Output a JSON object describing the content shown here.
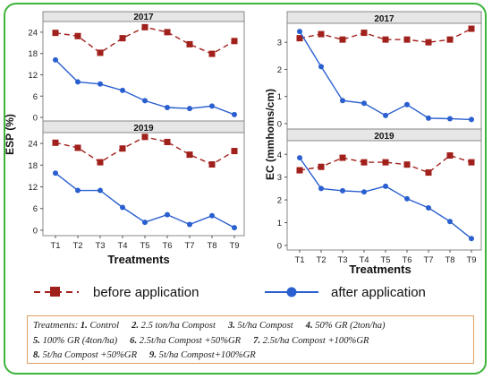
{
  "panel_titles": [
    "2017",
    "2019",
    "2017",
    "2019"
  ],
  "colors": {
    "before": "#a0201c",
    "after": "#2a5fd0",
    "frame": "#3db43a",
    "header_bg": "#e6e6e6"
  },
  "legend": {
    "before": "before application",
    "after": "after application"
  },
  "note": {
    "row1": [
      "Treatments: ",
      "1.",
      " Control",
      "2.",
      " 2.5 ton/ha Compost",
      "3.",
      " 5t/ha Compost",
      "4.",
      " 50% GR (2ton/ha)"
    ],
    "row2": [
      "5.",
      " 100% GR (4ton/ha)",
      "6.",
      " 2.5t/ha Compost +50%GR",
      "7.",
      " 2.5t/ha Compost +100%GR"
    ],
    "row3": [
      "8.",
      " 5t/ha Compost +50%GR",
      "9.",
      " 5t/ha Compost+100%GR"
    ]
  },
  "chart_data": [
    {
      "type": "line",
      "title": "2017",
      "ylabel": "ESP (%)",
      "xlabel": "",
      "categories": [
        "T1",
        "T2",
        "T3",
        "T4",
        "T5",
        "T6",
        "T7",
        "T8",
        "T9"
      ],
      "yticks": [
        0,
        6,
        12,
        18,
        24
      ],
      "ylim": [
        -1.5,
        27
      ],
      "series": [
        {
          "name": "before application",
          "values": [
            23.8,
            22.9,
            18.2,
            22.3,
            25.4,
            24.0,
            20.6,
            17.9,
            21.5
          ]
        },
        {
          "name": "after application",
          "values": [
            16.2,
            10.0,
            9.4,
            7.6,
            4.7,
            2.8,
            2.5,
            3.2,
            0.8
          ]
        }
      ]
    },
    {
      "type": "line",
      "title": "2019",
      "ylabel": "ESP (%)",
      "xlabel": "Treatments",
      "categories": [
        "T1",
        "T2",
        "T3",
        "T4",
        "T5",
        "T6",
        "T7",
        "T8",
        "T9"
      ],
      "yticks": [
        0,
        6,
        12,
        18,
        24
      ],
      "ylim": [
        -1.5,
        27
      ],
      "series": [
        {
          "name": "before application",
          "values": [
            24.2,
            22.8,
            18.8,
            22.6,
            25.8,
            24.4,
            20.9,
            18.2,
            21.9
          ]
        },
        {
          "name": "after application",
          "values": [
            15.8,
            11.0,
            11.0,
            6.3,
            2.2,
            4.3,
            1.6,
            4.0,
            0.7
          ]
        }
      ]
    },
    {
      "type": "line",
      "title": "2017",
      "ylabel": "EC (mmhoms/cm)",
      "xlabel": "",
      "categories": [
        "T1",
        "T2",
        "T3",
        "T4",
        "T5",
        "T6",
        "T7",
        "T8",
        "T9"
      ],
      "yticks": [
        0,
        1,
        2,
        3
      ],
      "ylim": [
        -0.2,
        3.7
      ],
      "series": [
        {
          "name": "before application",
          "values": [
            3.15,
            3.3,
            3.1,
            3.35,
            3.1,
            3.1,
            3.0,
            3.1,
            3.5
          ]
        },
        {
          "name": "after application",
          "values": [
            3.4,
            2.1,
            0.85,
            0.75,
            0.3,
            0.7,
            0.2,
            0.18,
            0.15
          ]
        }
      ]
    },
    {
      "type": "line",
      "title": "2019",
      "ylabel": "EC (mmhoms/cm)",
      "xlabel": "Treatments",
      "categories": [
        "T1",
        "T2",
        "T3",
        "T4",
        "T5",
        "T6",
        "T7",
        "T8",
        "T9"
      ],
      "yticks": [
        0,
        1,
        2,
        3,
        4
      ],
      "ylim": [
        -0.2,
        4.6
      ],
      "series": [
        {
          "name": "before application",
          "values": [
            3.3,
            3.45,
            3.85,
            3.65,
            3.65,
            3.55,
            3.2,
            3.95,
            3.65
          ]
        },
        {
          "name": "after application",
          "values": [
            3.85,
            2.5,
            2.4,
            2.35,
            2.6,
            2.05,
            1.65,
            1.05,
            0.3
          ]
        }
      ]
    }
  ]
}
